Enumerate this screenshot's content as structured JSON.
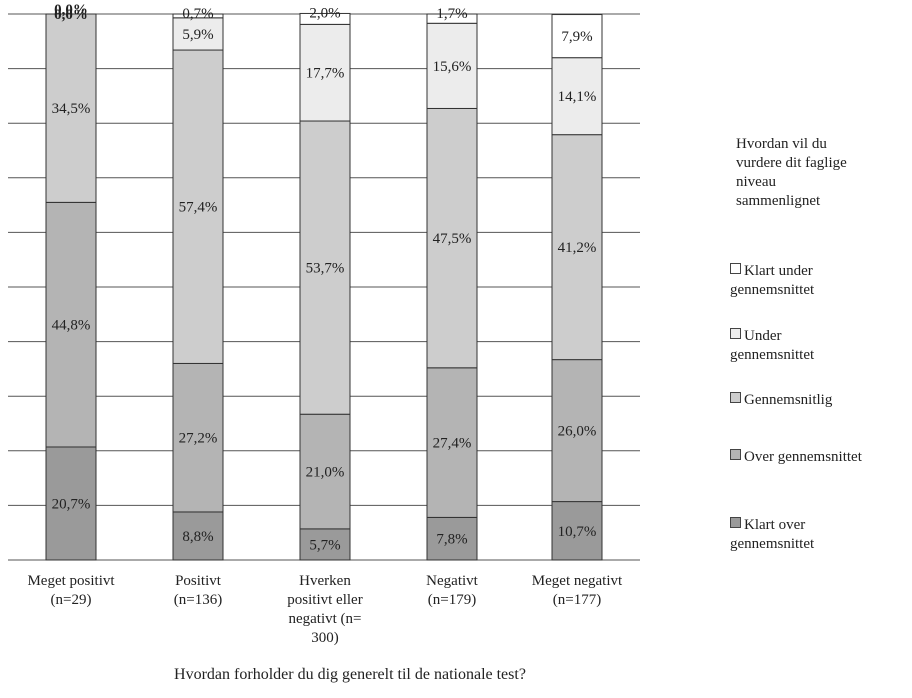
{
  "chart_data": {
    "type": "bar",
    "stacked": true,
    "normalized": true,
    "categories": [
      "Meget positivt\n(n=29)",
      "Positivt\n(n=136)",
      "Hverken\npositivt eller\nnegativt  (n=\n300)",
      "Negativt\n(n=179)",
      "Meget negativt\n(n=177)"
    ],
    "xlabel": "Hvordan forholder du dig generelt til de nationale test?",
    "ylim": [
      0,
      100
    ],
    "grid": true,
    "legend_title": "Hvordan vil du vurdere dit faglige niveau sammenlignet",
    "legend_position": "right",
    "series": [
      {
        "name": "Klart over gennemsnittet",
        "color": "#9a9a9a",
        "values": [
          20.7,
          8.8,
          5.7,
          7.8,
          10.7
        ],
        "labels": [
          "20,7%",
          "8,8%",
          "5,7%",
          "7,8%",
          "10,7%"
        ]
      },
      {
        "name": "Over gennemsnittet",
        "color": "#b4b4b4",
        "values": [
          44.8,
          27.2,
          21.0,
          27.4,
          26.0
        ],
        "labels": [
          "44,8%",
          "27,2%",
          "21,0%",
          "27,4%",
          "26,0%"
        ]
      },
      {
        "name": "Gennemsnitlig",
        "color": "#cdcdcd",
        "values": [
          34.5,
          57.4,
          53.7,
          47.5,
          41.2
        ],
        "labels": [
          "34,5%",
          "57,4%",
          "53,7%",
          "47,5%",
          "41,2%"
        ]
      },
      {
        "name": "Under gennemsnittet",
        "color": "#ececec",
        "values": [
          0.0,
          5.9,
          17.7,
          15.6,
          14.1
        ],
        "labels": [
          "0,0%",
          "5,9%",
          "17,7%",
          "15,6%",
          "14,1%"
        ]
      },
      {
        "name": "Klart under gennemsnittet",
        "color": "#ffffff",
        "values": [
          0.0,
          0.7,
          2.0,
          1.7,
          7.9
        ],
        "labels": [
          "0,0%",
          "0,7%",
          "2,0%",
          "1,7%",
          "7,9%"
        ]
      }
    ],
    "legend_order": [
      4,
      3,
      2,
      1,
      0
    ]
  }
}
